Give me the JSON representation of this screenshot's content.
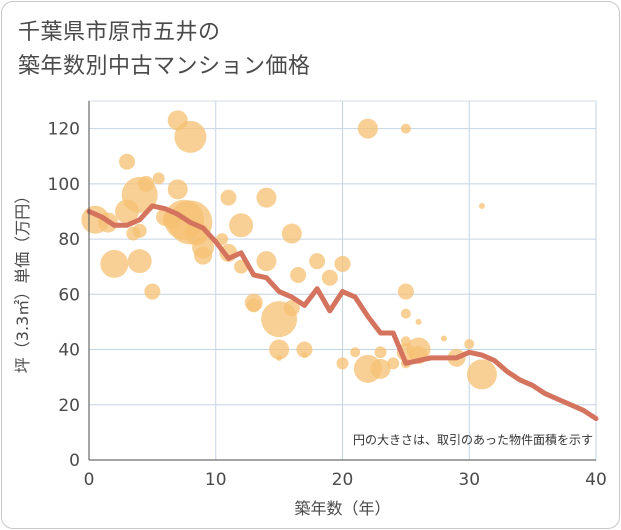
{
  "title_line1": "千葉県市原市五井の",
  "title_line2": "築年数別中古マンション価格",
  "chart_data": {
    "type": "scatter",
    "xlabel": "築年数（年）",
    "ylabel": "坪（3.3㎡）単価（万円）",
    "xlim": [
      0,
      40
    ],
    "ylim": [
      0,
      130
    ],
    "xticks": [
      0,
      10,
      20,
      30,
      40
    ],
    "yticks": [
      0,
      20,
      40,
      60,
      80,
      100,
      120
    ],
    "grid": true,
    "note": "円の大きさは、取引のあった物件面積を示す",
    "colors": {
      "bubble": "#f5c071",
      "line": "#d4735e",
      "grid": "#c5d4e3"
    },
    "bubbles": [
      {
        "x": 0.5,
        "y": 87,
        "s": 14
      },
      {
        "x": 1.5,
        "y": 86,
        "s": 10
      },
      {
        "x": 2,
        "y": 71,
        "s": 14
      },
      {
        "x": 3,
        "y": 108,
        "s": 8
      },
      {
        "x": 3,
        "y": 90,
        "s": 12
      },
      {
        "x": 3.5,
        "y": 82,
        "s": 7
      },
      {
        "x": 4,
        "y": 96,
        "s": 18
      },
      {
        "x": 4,
        "y": 72,
        "s": 12
      },
      {
        "x": 4,
        "y": 83,
        "s": 7
      },
      {
        "x": 4.5,
        "y": 100,
        "s": 8
      },
      {
        "x": 5,
        "y": 61,
        "s": 8
      },
      {
        "x": 5.5,
        "y": 102,
        "s": 6
      },
      {
        "x": 6,
        "y": 88,
        "s": 9
      },
      {
        "x": 6.5,
        "y": 87,
        "s": 9
      },
      {
        "x": 7,
        "y": 123,
        "s": 10
      },
      {
        "x": 7,
        "y": 98,
        "s": 10
      },
      {
        "x": 7.5,
        "y": 87,
        "s": 20
      },
      {
        "x": 8,
        "y": 117,
        "s": 16
      },
      {
        "x": 8,
        "y": 86,
        "s": 22
      },
      {
        "x": 8.5,
        "y": 82,
        "s": 12
      },
      {
        "x": 9,
        "y": 77,
        "s": 11
      },
      {
        "x": 9,
        "y": 74,
        "s": 9
      },
      {
        "x": 10.5,
        "y": 80,
        "s": 6
      },
      {
        "x": 11,
        "y": 95,
        "s": 8
      },
      {
        "x": 11,
        "y": 75,
        "s": 9
      },
      {
        "x": 12,
        "y": 85,
        "s": 12
      },
      {
        "x": 12,
        "y": 70,
        "s": 7
      },
      {
        "x": 13,
        "y": 57,
        "s": 9
      },
      {
        "x": 13,
        "y": 56,
        "s": 7
      },
      {
        "x": 14,
        "y": 95,
        "s": 10
      },
      {
        "x": 14,
        "y": 72,
        "s": 10
      },
      {
        "x": 15,
        "y": 51,
        "s": 18
      },
      {
        "x": 15,
        "y": 40,
        "s": 10
      },
      {
        "x": 15,
        "y": 37,
        "s": 3
      },
      {
        "x": 16,
        "y": 82,
        "s": 10
      },
      {
        "x": 16,
        "y": 55,
        "s": 8
      },
      {
        "x": 16.5,
        "y": 67,
        "s": 8
      },
      {
        "x": 17,
        "y": 40,
        "s": 8
      },
      {
        "x": 17,
        "y": 38,
        "s": 3
      },
      {
        "x": 18,
        "y": 72,
        "s": 8
      },
      {
        "x": 19,
        "y": 66,
        "s": 8
      },
      {
        "x": 20,
        "y": 71,
        "s": 8
      },
      {
        "x": 20,
        "y": 35,
        "s": 6
      },
      {
        "x": 21,
        "y": 39,
        "s": 5
      },
      {
        "x": 22,
        "y": 120,
        "s": 10
      },
      {
        "x": 22,
        "y": 33,
        "s": 14
      },
      {
        "x": 23,
        "y": 39,
        "s": 6
      },
      {
        "x": 23,
        "y": 33,
        "s": 10
      },
      {
        "x": 24,
        "y": 35,
        "s": 6
      },
      {
        "x": 25,
        "y": 120,
        "s": 5
      },
      {
        "x": 25,
        "y": 61,
        "s": 8
      },
      {
        "x": 25,
        "y": 53,
        "s": 5
      },
      {
        "x": 25,
        "y": 43,
        "s": 5
      },
      {
        "x": 25,
        "y": 39,
        "s": 9
      },
      {
        "x": 25,
        "y": 35,
        "s": 5
      },
      {
        "x": 26,
        "y": 50,
        "s": 3
      },
      {
        "x": 26,
        "y": 40,
        "s": 12
      },
      {
        "x": 26,
        "y": 38,
        "s": 9
      },
      {
        "x": 28,
        "y": 44,
        "s": 3
      },
      {
        "x": 29,
        "y": 37,
        "s": 9
      },
      {
        "x": 30,
        "y": 42,
        "s": 5
      },
      {
        "x": 31,
        "y": 31,
        "s": 15
      },
      {
        "x": 31,
        "y": 92,
        "s": 3
      }
    ],
    "series": [
      {
        "x": [
          0,
          1,
          2,
          3,
          4,
          5,
          6,
          7,
          8,
          9,
          10,
          11,
          12,
          13,
          14,
          15,
          16,
          17,
          18,
          19,
          20,
          21,
          22,
          23,
          24,
          25,
          26,
          27,
          28,
          29,
          30,
          31,
          32,
          33,
          34,
          35,
          36,
          37,
          38,
          39,
          40
        ],
        "values": [
          90,
          88,
          85,
          85,
          87,
          92,
          91,
          89,
          86,
          84,
          79,
          73,
          75,
          67,
          66,
          61,
          59,
          56,
          62,
          54,
          61,
          59,
          52,
          46,
          46,
          35,
          36,
          37,
          37,
          37,
          39,
          38,
          36,
          32,
          29,
          27,
          24,
          22,
          20,
          18,
          15
        ]
      }
    ]
  }
}
